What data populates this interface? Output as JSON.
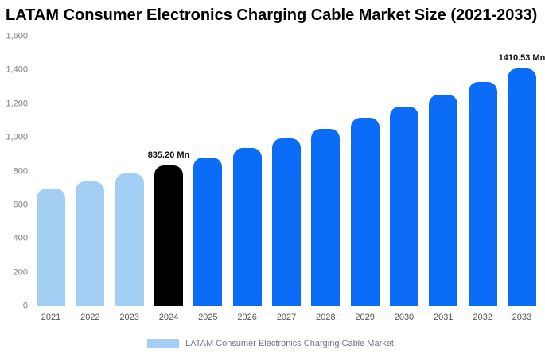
{
  "title": "LATAM Consumer Electronics Charging Cable Market Size (2021-2033)",
  "chart_data": {
    "type": "bar",
    "title": "LATAM Consumer Electronics Charging Cable Market Size (2021-2033)",
    "categories": [
      "2021",
      "2022",
      "2023",
      "2024",
      "2025",
      "2026",
      "2027",
      "2028",
      "2029",
      "2030",
      "2031",
      "2032",
      "2033"
    ],
    "values": [
      700,
      742,
      787,
      835.2,
      885,
      938,
      994,
      1054,
      1117,
      1184,
      1255,
      1331,
      1410.53
    ],
    "bar_colors": [
      "#a4cff4",
      "#a4cff4",
      "#a4cff4",
      "#000000",
      "#0b6cf7",
      "#0b6cf7",
      "#0b6cf7",
      "#0b6cf7",
      "#0b6cf7",
      "#0b6cf7",
      "#0b6cf7",
      "#0b6cf7",
      "#0b6cf7"
    ],
    "annotations": [
      {
        "index": 3,
        "text": "835.20 Mn"
      },
      {
        "index": 12,
        "text": "1410.53 Mn"
      }
    ],
    "xlabel": "",
    "ylabel": "",
    "ylim": [
      0,
      1600
    ],
    "yticks": [
      0,
      200,
      400,
      600,
      800,
      1000,
      1200,
      1400,
      1600
    ],
    "ytick_labels": [
      "0",
      "200",
      "400",
      "600",
      "800",
      "1,000",
      "1,200",
      "1,400",
      "1,600"
    ],
    "grid": false,
    "legend_position": "bottom",
    "legend": [
      {
        "label": "LATAM Consumer Electronics Charging Cable Market",
        "color": "#a4cff4"
      }
    ],
    "colors": {
      "historical": "#a4cff4",
      "highlight": "#000000",
      "forecast": "#0b6cf7"
    }
  }
}
